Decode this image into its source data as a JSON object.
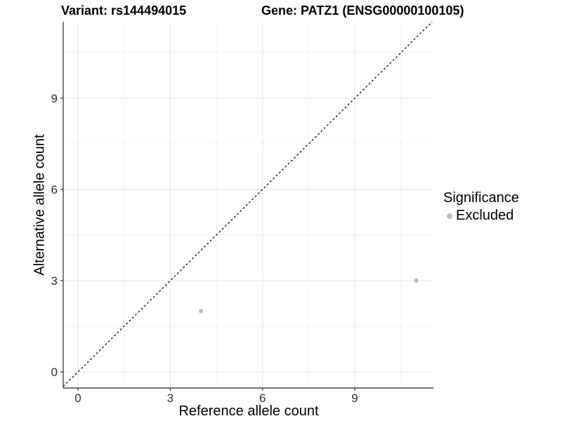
{
  "titles": {
    "variant": "Variant: rs144494015",
    "gene": "Gene: PATZ1 (ENSG00000100105)"
  },
  "legend": {
    "title": "Significance"
  },
  "chart_data": {
    "type": "scatter",
    "title_left": "Variant: rs144494015",
    "title_right": "Gene: PATZ1 (ENSG00000100105)",
    "xlabel": "Reference allele count",
    "ylabel": "Alternative allele count",
    "xlim": [
      -0.5,
      11.6
    ],
    "ylim": [
      -0.5,
      11.5
    ],
    "x_ticks": [
      0,
      3,
      6,
      9
    ],
    "y_ticks": [
      0,
      3,
      6,
      9
    ],
    "x_minor_ticks": [
      1.5,
      4.5,
      7.5,
      10.5
    ],
    "y_minor_ticks": [
      1.5,
      4.5,
      7.5,
      10.5
    ],
    "grid": "major+minor",
    "legend_position": "right",
    "legend_title": "Significance",
    "series": [
      {
        "name": "Excluded",
        "color": "#bdbdbd",
        "marker": "circle",
        "points": [
          {
            "x": 4,
            "y": 2
          },
          {
            "x": 11,
            "y": 3
          }
        ]
      }
    ],
    "reference_line": {
      "kind": "identity y=x",
      "style": "dashed",
      "color": "#000000"
    },
    "colors": {
      "background": "#ffffff",
      "axis_line": "#474747",
      "tick_mark": "#333333",
      "tick_label": "#303030",
      "grid_major": "#e5e5e5",
      "grid_minor": "#f2f2f2"
    }
  }
}
